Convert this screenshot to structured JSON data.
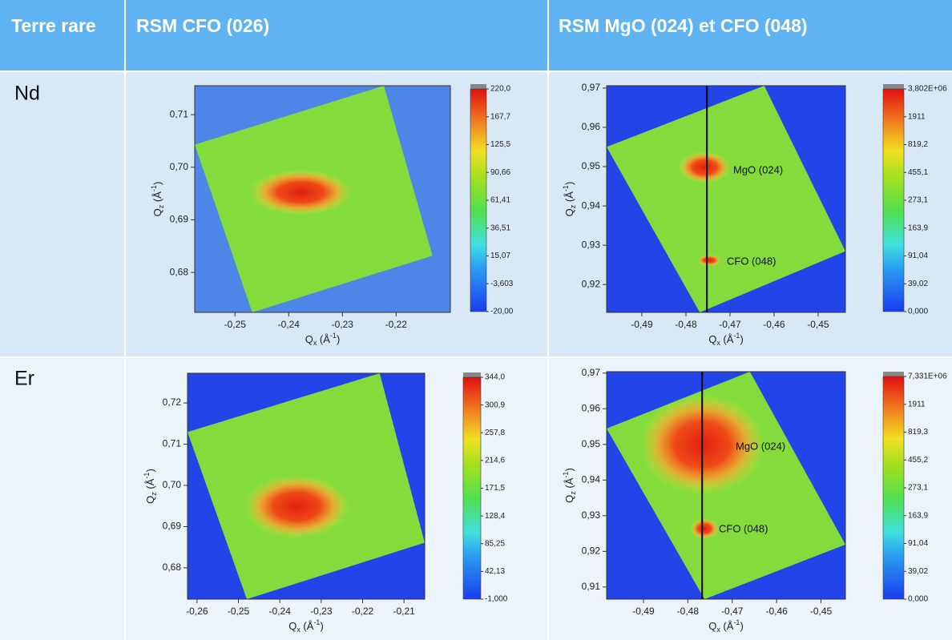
{
  "header": [
    "Terre rare",
    "RSM CFO (026)",
    "RSM MgO (024) et CFO (048)"
  ],
  "rows": [
    {
      "label": "Nd",
      "plots": [
        {
          "xlabel": [
            "Q",
            "x",
            " (Å",
            "-1",
            ")"
          ],
          "ylabel": [
            "Q",
            "z",
            " (Å",
            "-1",
            ")"
          ],
          "xlim": [
            -0.2575,
            -0.2099
          ],
          "ylim": [
            0.6724,
            0.7155
          ],
          "xticks": [
            {
              "value": -0.25,
              "label": "-0,25"
            },
            {
              "value": -0.24,
              "label": "-0,24"
            },
            {
              "value": -0.23,
              "label": "-0,23"
            },
            {
              "value": -0.22,
              "label": "-0,22"
            }
          ],
          "yticks": [
            {
              "value": 0.71,
              "label": "0,71"
            },
            {
              "value": 0.7,
              "label": "0,70"
            },
            {
              "value": 0.69,
              "label": "0,69"
            },
            {
              "value": 0.68,
              "label": "0,68"
            }
          ],
          "colorbar": [
            "220,0",
            "167,7",
            "125,5",
            "90,66",
            "61,41",
            "36,51",
            "15,07",
            "-3,603",
            "-20,00"
          ],
          "annotations": []
        },
        {
          "xlabel": [
            "Q",
            "x",
            " (Å",
            "-1",
            ")"
          ],
          "ylabel": [
            "Q",
            "z",
            " (Å",
            "-1",
            ")"
          ],
          "xlim": [
            -0.498,
            -0.4438
          ],
          "ylim": [
            0.9129,
            0.9706
          ],
          "xticks": [
            {
              "value": -0.49,
              "label": "-0,49"
            },
            {
              "value": -0.48,
              "label": "-0,48"
            },
            {
              "value": -0.47,
              "label": "-0,47"
            },
            {
              "value": -0.46,
              "label": "-0,46"
            },
            {
              "value": -0.45,
              "label": "-0,45"
            }
          ],
          "yticks": [
            {
              "value": 0.97,
              "label": "0,97"
            },
            {
              "value": 0.96,
              "label": "0,96"
            },
            {
              "value": 0.95,
              "label": "0,95"
            },
            {
              "value": 0.94,
              "label": "0,94"
            },
            {
              "value": 0.93,
              "label": "0,93"
            },
            {
              "value": 0.92,
              "label": "0,92"
            }
          ],
          "colorbar": [
            "3,802E+06",
            "1911",
            "819,2",
            "455,1",
            "273,1",
            "163,9",
            "91,04",
            "39,02",
            "0,000"
          ],
          "annotations": [
            "MgO (024)",
            "CFO (048)"
          ]
        }
      ]
    },
    {
      "label": "Er",
      "plots": [
        {
          "xlabel": [
            "Q",
            "x",
            " (Å",
            "-1",
            ")"
          ],
          "ylabel": [
            "Q",
            "z",
            " (Å",
            "-1",
            ")"
          ],
          "xlim": [
            -0.2623,
            -0.205
          ],
          "ylim": [
            0.6724,
            0.7272
          ],
          "xticks": [
            {
              "value": -0.26,
              "label": "-0,26"
            },
            {
              "value": -0.25,
              "label": "-0,25"
            },
            {
              "value": -0.24,
              "label": "-0,24"
            },
            {
              "value": -0.23,
              "label": "-0,23"
            },
            {
              "value": -0.22,
              "label": "-0,22"
            },
            {
              "value": -0.21,
              "label": "-0,21"
            }
          ],
          "yticks": [
            {
              "value": 0.72,
              "label": "0,72"
            },
            {
              "value": 0.71,
              "label": "0,71"
            },
            {
              "value": 0.7,
              "label": "0,70"
            },
            {
              "value": 0.69,
              "label": "0,69"
            },
            {
              "value": 0.68,
              "label": "0,68"
            }
          ],
          "colorbar": [
            "344,0",
            "300,9",
            "257,8",
            "214,6",
            "171,5",
            "128,4",
            "85,25",
            "42,13",
            "-1,000"
          ],
          "annotations": []
        },
        {
          "xlabel": [
            "Q",
            "x",
            " (Å",
            "-1",
            ")"
          ],
          "ylabel": [
            "Q",
            "z",
            " (Å",
            "-1",
            ")"
          ],
          "xlim": [
            -0.4983,
            -0.4445
          ],
          "ylim": [
            0.9066,
            0.9704
          ],
          "xticks": [
            {
              "value": -0.49,
              "label": "-0,49"
            },
            {
              "value": -0.48,
              "label": "-0,48"
            },
            {
              "value": -0.47,
              "label": "-0,47"
            },
            {
              "value": -0.46,
              "label": "-0,46"
            },
            {
              "value": -0.45,
              "label": "-0,45"
            }
          ],
          "yticks": [
            {
              "value": 0.97,
              "label": "0,97"
            },
            {
              "value": 0.96,
              "label": "0,96"
            },
            {
              "value": 0.95,
              "label": "0,95"
            },
            {
              "value": 0.94,
              "label": "0,94"
            },
            {
              "value": 0.93,
              "label": "0,93"
            },
            {
              "value": 0.92,
              "label": "0,92"
            },
            {
              "value": 0.91,
              "label": "0,91"
            }
          ],
          "colorbar": [
            "7,331E+06",
            "1911",
            "819,3",
            "455,2",
            "273,1",
            "163,9",
            "91,04",
            "39,02",
            "0,000"
          ],
          "annotations": [
            "MgO (024)",
            "CFO (048)"
          ]
        }
      ]
    }
  ]
}
